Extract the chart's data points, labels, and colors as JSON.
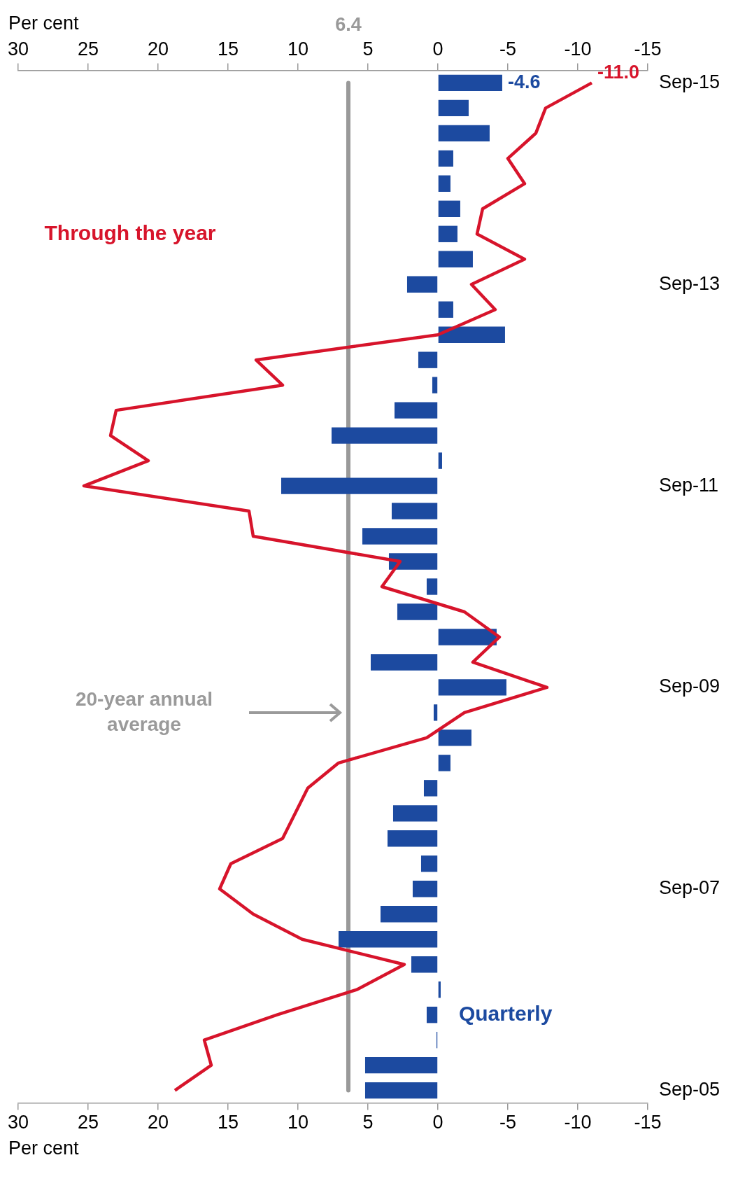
{
  "chart_data": {
    "type": "bar",
    "orientation": "horizontal",
    "xlabel": "Per cent",
    "x2label": "Per cent",
    "categories": [
      "Sep-15",
      null,
      null,
      null,
      null,
      null,
      null,
      null,
      "Sep-13",
      null,
      null,
      null,
      null,
      null,
      null,
      null,
      "Sep-11",
      null,
      null,
      null,
      null,
      null,
      null,
      null,
      "Sep-09",
      null,
      null,
      null,
      null,
      null,
      null,
      null,
      "Sep-07",
      null,
      null,
      null,
      null,
      null,
      null,
      null,
      "Sep-05"
    ],
    "series": [
      {
        "name": "Quarterly",
        "color": "#1c4aa0",
        "values": [
          -4.6,
          -2.2,
          -3.7,
          -1.1,
          -0.9,
          -1.6,
          -1.4,
          -2.5,
          2.2,
          -1.1,
          -4.8,
          1.4,
          0.4,
          3.1,
          7.6,
          -0.3,
          11.2,
          3.3,
          5.4,
          3.5,
          0.8,
          2.9,
          -4.2,
          4.8,
          -4.9,
          0.3,
          -2.4,
          -0.9,
          1.0,
          3.2,
          3.6,
          1.2,
          1.8,
          4.1,
          7.1,
          1.9,
          -0.2,
          0.8,
          0.1,
          5.2,
          5.2
        ],
        "value_labels": [
          "-4.6",
          null,
          null,
          null,
          null,
          null,
          null,
          null,
          null,
          null,
          null,
          null,
          null,
          null,
          null,
          null,
          null,
          null,
          null,
          null,
          null,
          null,
          null,
          null,
          null,
          null,
          null,
          null,
          null,
          null,
          null,
          null,
          null,
          null,
          null,
          null,
          null,
          null,
          null,
          null,
          null
        ]
      },
      {
        "name": "Through the year",
        "type": "line",
        "color": "#d7142b",
        "values": [
          -11.0,
          -7.7,
          -7.0,
          -5.0,
          -6.2,
          -3.2,
          -2.8,
          -6.2,
          -2.4,
          -4.1,
          0.0,
          13.0,
          11.1,
          23.0,
          23.4,
          20.7,
          25.3,
          13.5,
          13.2,
          2.7,
          4.0,
          -1.9,
          -4.4,
          -2.5,
          -7.8,
          -1.9,
          0.8,
          7.1,
          9.3,
          10.2,
          11.1,
          14.8,
          15.6,
          13.2,
          9.7,
          2.4,
          5.8,
          11.5,
          16.7,
          16.2,
          18.8
        ],
        "value_labels": [
          "-11.0",
          null,
          null,
          null,
          null,
          null,
          null,
          null,
          null,
          null,
          null,
          null,
          null,
          null,
          null,
          null,
          null,
          null,
          null,
          null,
          null,
          null,
          null,
          null,
          null,
          null,
          null,
          null,
          null,
          null,
          null,
          null,
          null,
          null,
          null,
          null,
          null,
          null,
          null,
          null,
          null
        ]
      }
    ],
    "xlim": [
      30,
      -15
    ],
    "xticks": [
      30,
      25,
      20,
      15,
      10,
      5,
      0,
      -5,
      -10,
      -15
    ],
    "x2lim": [
      30,
      -15
    ],
    "x2ticks": [
      30,
      25,
      20,
      15,
      10,
      5,
      0,
      -5,
      -10,
      -15
    ],
    "ref_lines": [
      {
        "axis": "x",
        "value": 6.4,
        "label": "6.4",
        "color": "#999999"
      }
    ],
    "annotations": [
      "20-year annual average"
    ],
    "grid": false,
    "marker": "none"
  }
}
